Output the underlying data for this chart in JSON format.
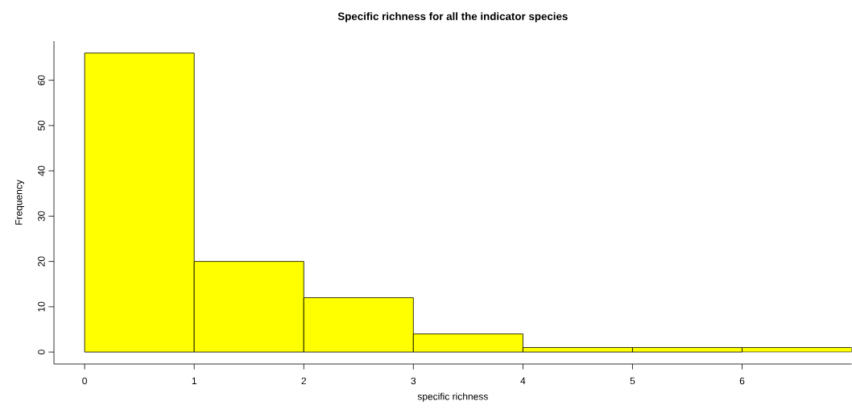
{
  "chart_data": {
    "type": "histogram",
    "title": "Specific richness for all the indicator species",
    "xlabel": "specific richness",
    "ylabel": "Frequency",
    "bins": [
      0,
      1,
      2,
      3,
      4,
      5,
      6,
      7
    ],
    "values": [
      66,
      20,
      12,
      4,
      1,
      1,
      1
    ],
    "color": "#ffff00",
    "xlim": [
      -0.28,
      7
    ],
    "ylim": [
      -2.64,
      68.64
    ],
    "xticks": [
      0,
      1,
      2,
      3,
      4,
      5,
      6
    ],
    "yticks": [
      0,
      10,
      20,
      30,
      40,
      50,
      60
    ],
    "grid": false
  }
}
